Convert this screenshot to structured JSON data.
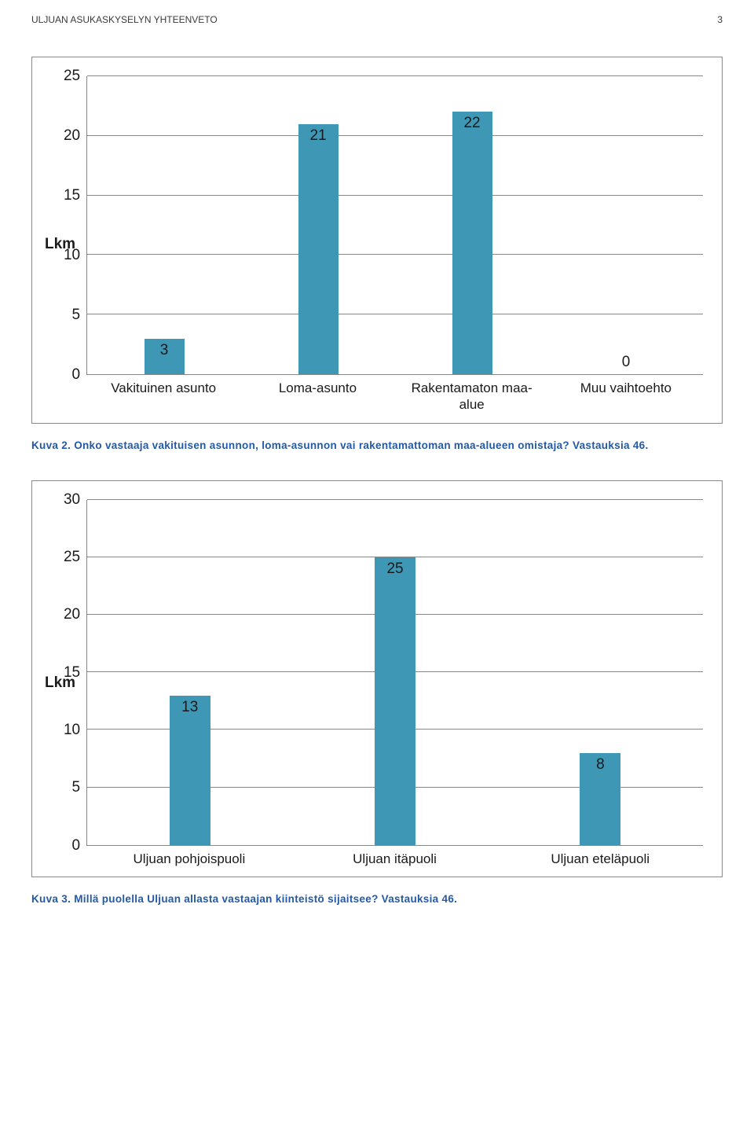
{
  "header": {
    "title": "ULJUAN ASUKASKYSELYN YHTEENVETO",
    "page": "3"
  },
  "chart1": {
    "type": "bar",
    "ylabel": "Lkm",
    "ylim": [
      0,
      25
    ],
    "ytick_step": 5,
    "yticks": [
      "25",
      "20",
      "15",
      "10",
      "5",
      "0"
    ],
    "bar_color": "#3e97b5",
    "grid_color": "#888888",
    "background_color": "#ffffff",
    "bar_width_pct": 26,
    "label_fontsize": 19,
    "categories": [
      "Vakituinen asunto",
      "Loma-asunto",
      "Rakentamaton maa-\nalue",
      "Muu vaihtoehto"
    ],
    "values": [
      3,
      21,
      22,
      0
    ],
    "value_labels": [
      "3",
      "21",
      "22",
      "0"
    ]
  },
  "caption1": {
    "prefix": "Kuva 2.",
    "text": "Onko vastaaja vakituisen asunnon, loma-asunnon vai rakentamattoman maa-alueen omistaja? Vastauksia 46."
  },
  "chart2": {
    "type": "bar",
    "ylabel": "Lkm",
    "ylim": [
      0,
      30
    ],
    "ytick_step": 5,
    "yticks": [
      "30",
      "25",
      "20",
      "15",
      "10",
      "5",
      "0"
    ],
    "bar_color": "#3e97b5",
    "grid_color": "#888888",
    "background_color": "#ffffff",
    "bar_width_pct": 20,
    "label_fontsize": 19,
    "categories": [
      "Uljuan pohjoispuoli",
      "Uljuan itäpuoli",
      "Uljuan eteläpuoli"
    ],
    "values": [
      13,
      25,
      8
    ],
    "value_labels": [
      "13",
      "25",
      "8"
    ]
  },
  "caption2": {
    "prefix": "Kuva 3.",
    "text": "Millä puolella Uljuan allasta vastaajan kiinteistö sijaitsee? Vastauksia 46."
  }
}
